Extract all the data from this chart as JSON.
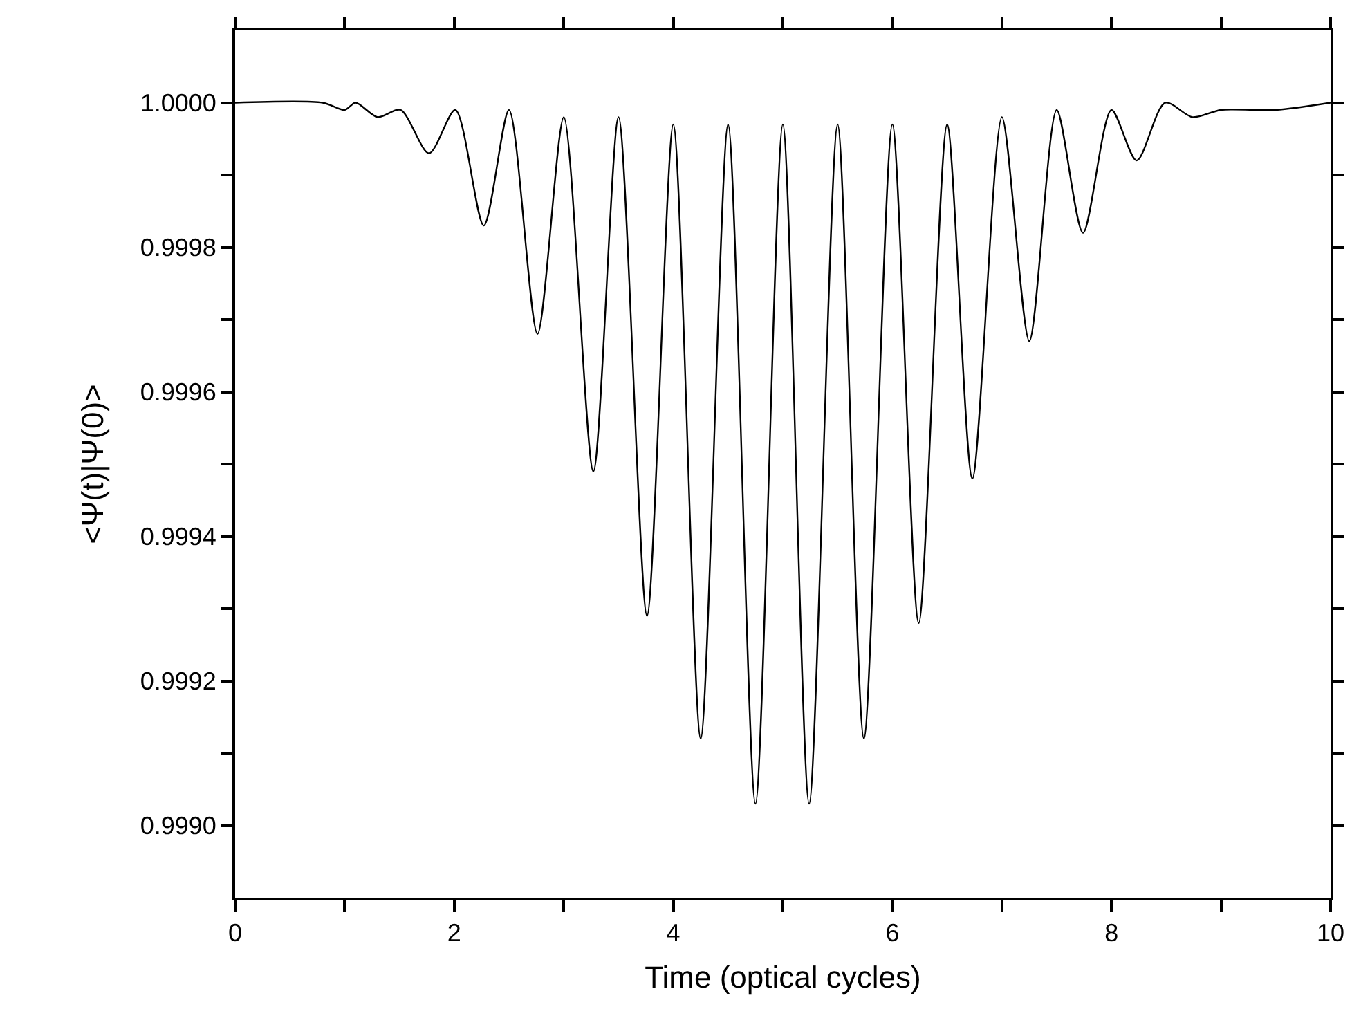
{
  "chart_data": {
    "type": "line",
    "xlabel": "Time (optical cycles)",
    "ylabel": "<Ψ(t)|Ψ(0)>",
    "x": [
      0,
      0.8,
      1.0,
      1.1,
      1.3,
      1.51,
      1.77,
      2.01,
      2.27,
      2.5,
      2.76,
      3.0,
      3.27,
      3.5,
      3.76,
      4.0,
      4.25,
      4.5,
      4.75,
      5.0,
      5.24,
      5.5,
      5.74,
      6.0,
      6.24,
      6.5,
      6.73,
      7.0,
      7.25,
      7.5,
      7.74,
      8.0,
      8.23,
      8.49,
      8.74,
      9.0,
      9.5,
      10
    ],
    "series": [
      {
        "color": "#000000",
        "values": [
          1.0,
          1.0,
          0.99999,
          1.0,
          0.99998,
          0.99999,
          0.99993,
          0.99999,
          0.99983,
          0.99999,
          0.99968,
          0.99998,
          0.99949,
          0.99998,
          0.99929,
          0.99997,
          0.99912,
          0.99997,
          0.99903,
          0.99997,
          0.99903,
          0.99997,
          0.99912,
          0.99997,
          0.99928,
          0.99997,
          0.99948,
          0.99998,
          0.99967,
          0.99999,
          0.99982,
          0.99999,
          0.99992,
          1.0,
          0.99998,
          0.99999,
          0.99999,
          1.0
        ]
      }
    ],
    "xlim": [
      0,
      10
    ],
    "xticks": [
      0,
      {
        "value": 1,
        "label": null
      },
      2,
      {
        "value": 3,
        "label": null
      },
      4,
      {
        "value": 5,
        "label": null
      },
      6,
      {
        "value": 7,
        "label": null
      },
      8,
      {
        "value": 9,
        "label": null
      },
      10
    ],
    "ylim": [
      0.9989,
      1.0001
    ],
    "yticks": [
      {
        "value": 0.999,
        "label": "0.9990"
      },
      {
        "value": 0.9991,
        "label": null
      },
      {
        "value": 0.9992,
        "label": "0.9992"
      },
      {
        "value": 0.9993,
        "label": null
      },
      {
        "value": 0.9994,
        "label": "0.9994"
      },
      {
        "value": 0.9995,
        "label": null
      },
      {
        "value": 0.9996,
        "label": "0.9996"
      },
      {
        "value": 0.9997,
        "label": null
      },
      {
        "value": 0.9998,
        "label": "0.9998"
      },
      {
        "value": 0.9999,
        "label": null
      },
      {
        "value": 1.0,
        "label": "1.0000"
      }
    ],
    "marker": "none",
    "line_style": "solid"
  }
}
